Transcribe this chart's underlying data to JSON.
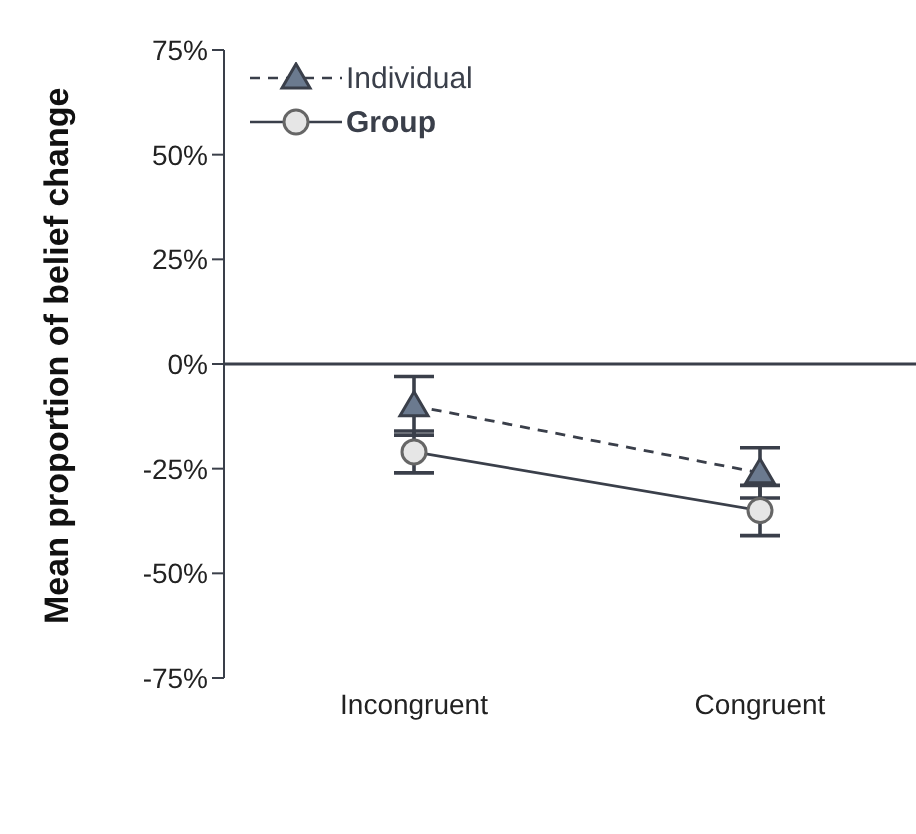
{
  "chart_data": {
    "type": "line",
    "ylabel": "Mean proportion of belief change",
    "categories": [
      "Incongruent",
      "Congruent"
    ],
    "series": [
      {
        "name": "Individual",
        "color": "#6b7a8f",
        "values": [
          -10,
          -26
        ],
        "errors": [
          7,
          6
        ],
        "marker": "triangle",
        "line_style": "dashed"
      },
      {
        "name": "Group",
        "color": "#e6e6e6",
        "values": [
          -21,
          -35
        ],
        "errors": [
          5,
          6
        ],
        "marker": "circle",
        "line_style": "solid"
      }
    ],
    "ylim": [
      -75,
      75
    ],
    "yticks": [
      {
        "value": -75,
        "label": "-75%"
      },
      {
        "value": -50,
        "label": "-50%"
      },
      {
        "value": -25,
        "label": "-25%"
      },
      {
        "value": 0,
        "label": "0%"
      },
      {
        "value": 25,
        "label": "25%"
      },
      {
        "value": 50,
        "label": "50%"
      },
      {
        "value": 75,
        "label": "75%"
      }
    ],
    "ref_lines": [
      {
        "axis": "y",
        "value": 0
      }
    ],
    "grid": false,
    "legend": "top left"
  }
}
